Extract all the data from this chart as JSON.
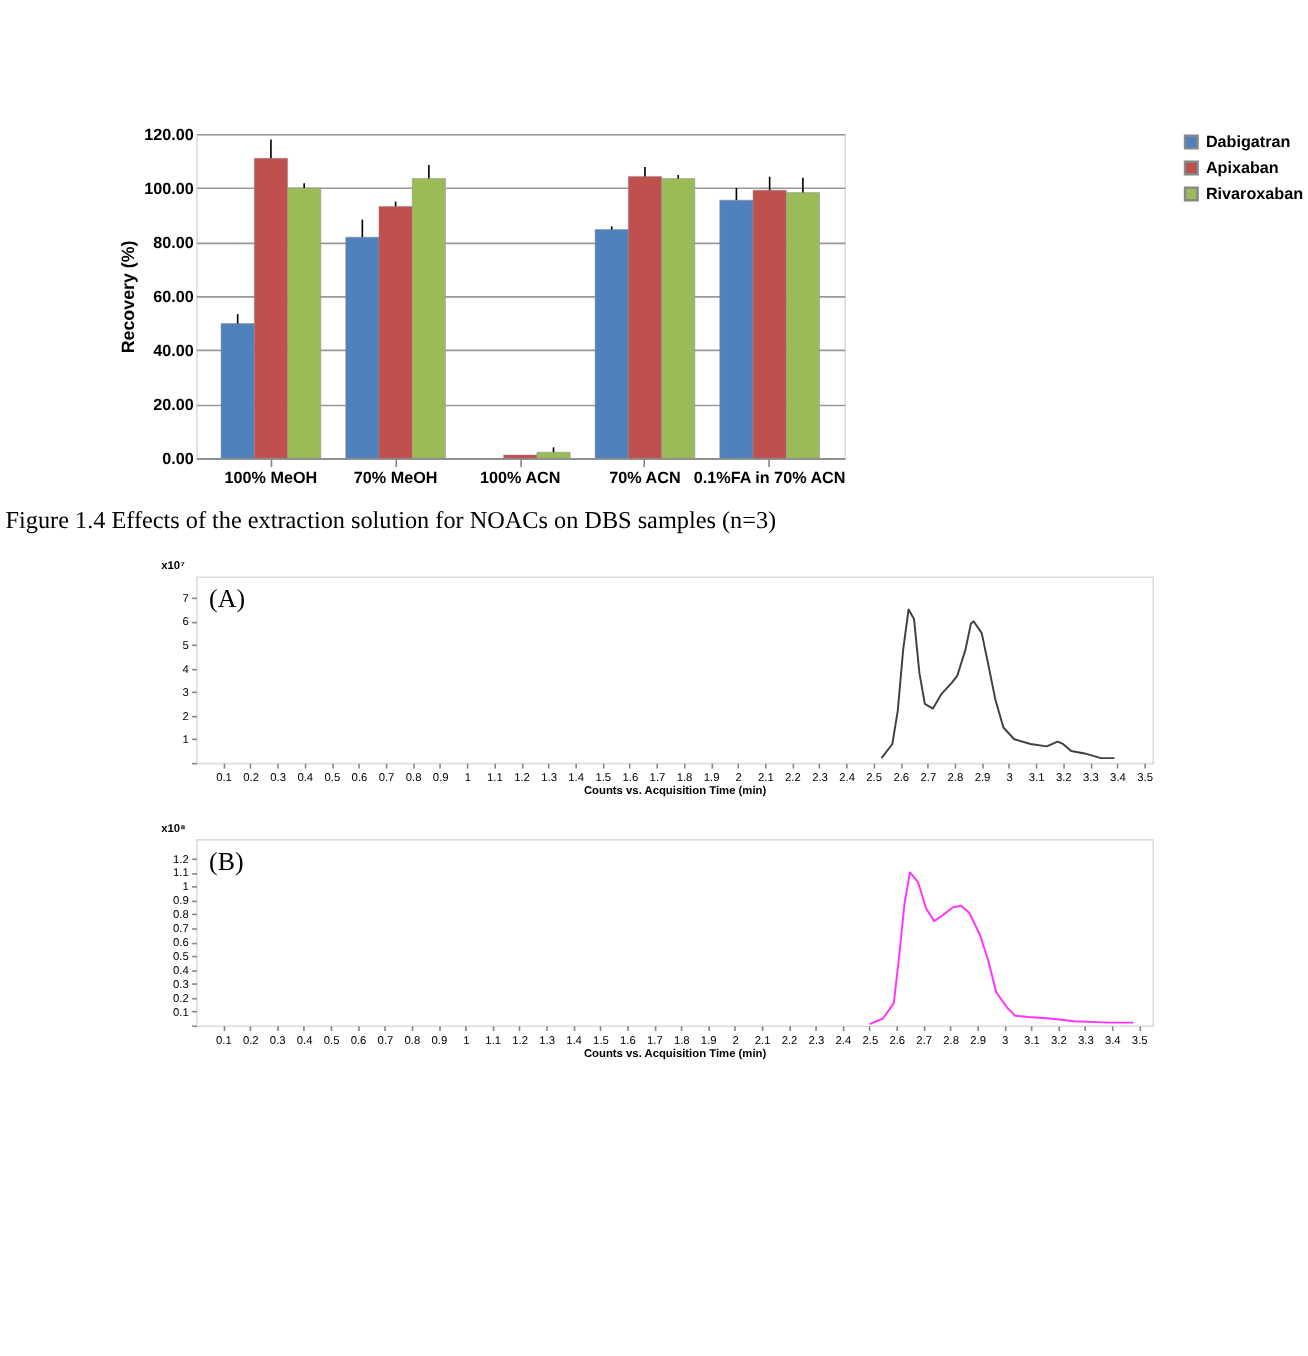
{
  "chart_data": [
    {
      "type": "bar",
      "categories": [
        "100% MeOH",
        "70% MeOH",
        "100% ACN",
        "70% ACN",
        "0.1%FA in 70% ACN"
      ],
      "ylabel": "Recovery (%)",
      "ylim": [
        0,
        120
      ],
      "yticks": [
        {
          "value": 0,
          "label": "0.00"
        },
        {
          "value": 20,
          "label": "20.00"
        },
        {
          "value": 40,
          "label": "40.00"
        },
        {
          "value": 60,
          "label": "60.00"
        },
        {
          "value": 80,
          "label": "80.00"
        },
        {
          "value": 100,
          "label": "100.00"
        },
        {
          "value": 120,
          "label": "120.00"
        }
      ],
      "grid": "y",
      "legend": "right",
      "series": [
        {
          "name": "Dabigatran",
          "color": "#4f81bd",
          "values": [
            49.8,
            81.8,
            null,
            84.6,
            95.5
          ],
          "errors": [
            [
              49.8,
              53.3
            ],
            [
              81.8,
              88.3
            ],
            null,
            [
              84.6,
              85.8
            ],
            [
              95.5,
              100
            ]
          ]
        },
        {
          "name": "Apixaban",
          "color": "#c0504d",
          "values": [
            111,
            93.2,
            1.2,
            104.3,
            99.2
          ],
          "errors": [
            [
              111,
              118
            ],
            [
              93.2,
              95
            ],
            null,
            [
              104.3,
              107.8
            ],
            [
              99.2,
              104.2
            ]
          ]
        },
        {
          "name": "Rivaroxaban",
          "color": "#9bbb59",
          "values": [
            100,
            103.5,
            2.2,
            103.5,
            98.3
          ],
          "errors": [
            [
              100,
              101.8
            ],
            [
              103.5,
              108.5
            ],
            [
              2.2,
              4
            ],
            [
              103.5,
              104.8
            ],
            [
              98.3,
              103.8
            ]
          ]
        }
      ],
      "annotations": [
        "Figure 1.4 Effects of the extraction solution for NOACs on DBS samples (n=3)"
      ]
    },
    {
      "type": "line",
      "xlim": [
        0,
        3.53
      ],
      "ylim": [
        0,
        7.9
      ],
      "xlabel": "Counts vs. Acquisition Time (min)",
      "ylabel": "x10⁷",
      "xticks": [
        0.1,
        0.2,
        0.3,
        0.4,
        0.5,
        0.6,
        0.7,
        0.8,
        0.9,
        1,
        1.1,
        1.2,
        1.3,
        1.4,
        1.5,
        1.6,
        1.7,
        1.8,
        1.9,
        2,
        2.1,
        2.2,
        2.3,
        2.4,
        2.5,
        2.6,
        2.7,
        2.8,
        2.9,
        3,
        3.1,
        3.2,
        3.3,
        3.4,
        3.5
      ],
      "yticks": [
        {
          "value": 0,
          "label": null
        },
        1,
        2,
        3,
        4,
        5,
        6,
        7
      ],
      "annotations": [
        "(A)"
      ],
      "series": [
        {
          "color": "#404040",
          "x": [
            2.53,
            2.57,
            2.59,
            2.61,
            2.63,
            2.65,
            2.67,
            2.69,
            2.72,
            2.75,
            2.79,
            2.81,
            2.84,
            2.86,
            2.87,
            2.9,
            2.92,
            2.95,
            2.98,
            3.02,
            3.08,
            3.14,
            3.18,
            3.2,
            3.23,
            3.28,
            3.34,
            3.39
          ],
          "values": [
            0.2,
            0.8,
            2.2,
            4.8,
            6.5,
            6.1,
            3.8,
            2.5,
            2.3,
            2.9,
            3.4,
            3.7,
            4.8,
            5.9,
            6.0,
            5.5,
            4.4,
            2.7,
            1.5,
            1.0,
            0.8,
            0.7,
            0.9,
            0.8,
            0.5,
            0.4,
            0.2,
            0.2
          ]
        }
      ]
    },
    {
      "type": "line",
      "xlim": [
        0,
        3.55
      ],
      "ylim": [
        0,
        1.34
      ],
      "xlabel": "Counts vs. Acquisition Time (min)",
      "ylabel": "x10⁸",
      "xticks": [
        0.1,
        0.2,
        0.3,
        0.4,
        0.5,
        0.6,
        0.7,
        0.8,
        0.9,
        1,
        1.1,
        1.2,
        1.3,
        1.4,
        1.5,
        1.6,
        1.7,
        1.8,
        1.9,
        2,
        2.1,
        2.2,
        2.3,
        2.4,
        2.5,
        2.6,
        2.7,
        2.8,
        2.9,
        3,
        3.1,
        3.2,
        3.3,
        3.4,
        3.5
      ],
      "yticks": [
        {
          "value": 0,
          "label": null
        },
        0.1,
        0.2,
        0.3,
        0.4,
        0.5,
        0.6,
        0.7,
        0.8,
        0.9,
        1,
        1.1,
        1.2
      ],
      "annotations": [
        "(B)"
      ],
      "series": [
        {
          "color": "#ff33ff",
          "x": [
            2.5,
            2.55,
            2.59,
            2.61,
            2.63,
            2.65,
            2.68,
            2.71,
            2.74,
            2.77,
            2.81,
            2.84,
            2.87,
            2.91,
            2.94,
            2.97,
            3.01,
            3.04,
            3.09,
            3.17,
            3.26,
            3.39,
            3.48
          ],
          "values": [
            0.01,
            0.05,
            0.16,
            0.5,
            0.88,
            1.1,
            1.03,
            0.84,
            0.75,
            0.79,
            0.85,
            0.86,
            0.81,
            0.65,
            0.47,
            0.24,
            0.13,
            0.07,
            0.06,
            0.05,
            0.03,
            0.02,
            0.02
          ]
        }
      ]
    }
  ]
}
